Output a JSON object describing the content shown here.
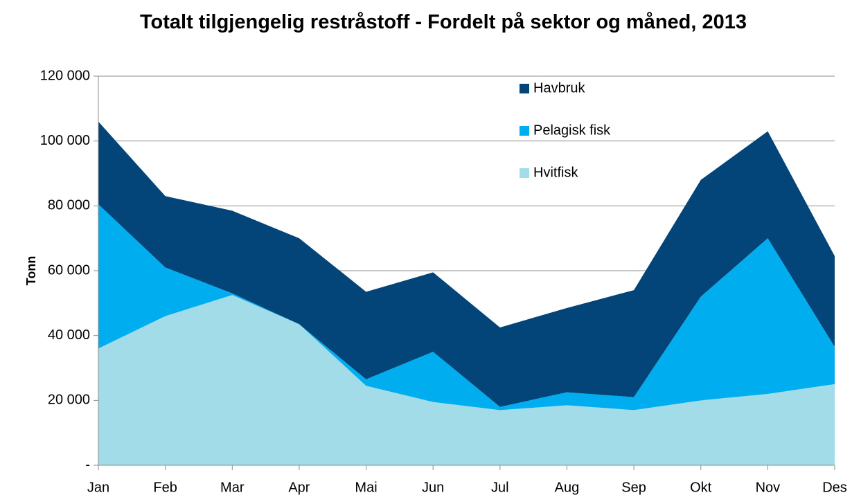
{
  "chart_data": {
    "type": "stacked-area",
    "title": "Totalt tilgjengelig restråstoff - Fordelt på sektor og måned, 2013",
    "y_label": "Tonn",
    "categories": [
      "Jan",
      "Feb",
      "Mar",
      "Apr",
      "Mai",
      "Jun",
      "Jul",
      "Aug",
      "Sep",
      "Okt",
      "Nov",
      "Des"
    ],
    "series": [
      {
        "name": "Hvitfisk",
        "color": "#a3dce9",
        "values": [
          36000,
          46000,
          52500,
          43500,
          24500,
          19500,
          17000,
          18500,
          17000,
          20000,
          22000,
          25000
        ]
      },
      {
        "name": "Pelagisk fisk",
        "color": "#00aeef",
        "values": [
          44500,
          15000,
          500,
          0,
          2000,
          15500,
          1000,
          4000,
          4000,
          32000,
          48000,
          11500
        ]
      },
      {
        "name": "Havbruk",
        "color": "#034479",
        "values": [
          25500,
          22000,
          25500,
          26500,
          27000,
          24500,
          24500,
          26000,
          33000,
          36000,
          33000,
          28000
        ]
      }
    ],
    "ylim": [
      0,
      120000
    ],
    "yticks": [
      {
        "value": 0,
        "label": "-"
      },
      {
        "value": 20000,
        "label": "20 000"
      },
      {
        "value": 40000,
        "label": "40 000"
      },
      {
        "value": 60000,
        "label": "60 000"
      },
      {
        "value": 80000,
        "label": "80 000"
      },
      {
        "value": 100000,
        "label": "100 000"
      },
      {
        "value": 120000,
        "label": "120 000"
      }
    ],
    "grid": true,
    "legend": "top-right"
  }
}
